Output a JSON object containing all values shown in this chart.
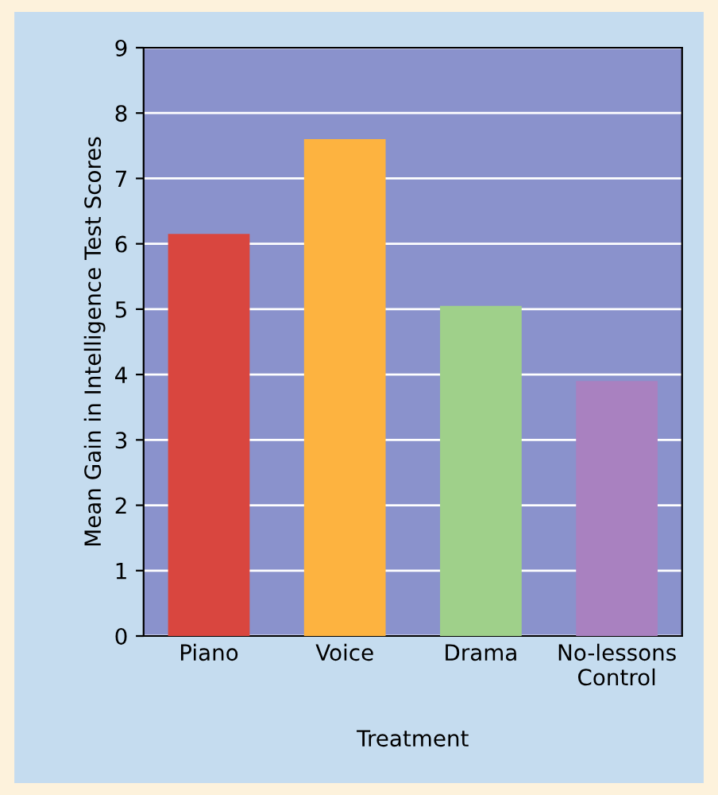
{
  "chart_data": {
    "type": "bar",
    "xlabel": "Treatment",
    "ylabel": "Mean Gain in Intelligence Test Scores",
    "categories": [
      "Piano",
      "Voice",
      "Drama",
      "No-lessons\nControl"
    ],
    "values": [
      6.15,
      7.6,
      5.05,
      3.9
    ],
    "colors": [
      "#d9463f",
      "#fdb340",
      "#9fd08a",
      "#a981c0"
    ],
    "ylim": [
      0,
      9
    ],
    "yticks": [
      0,
      1,
      2,
      3,
      4,
      5,
      6,
      7,
      8,
      9
    ],
    "grid": "y"
  }
}
